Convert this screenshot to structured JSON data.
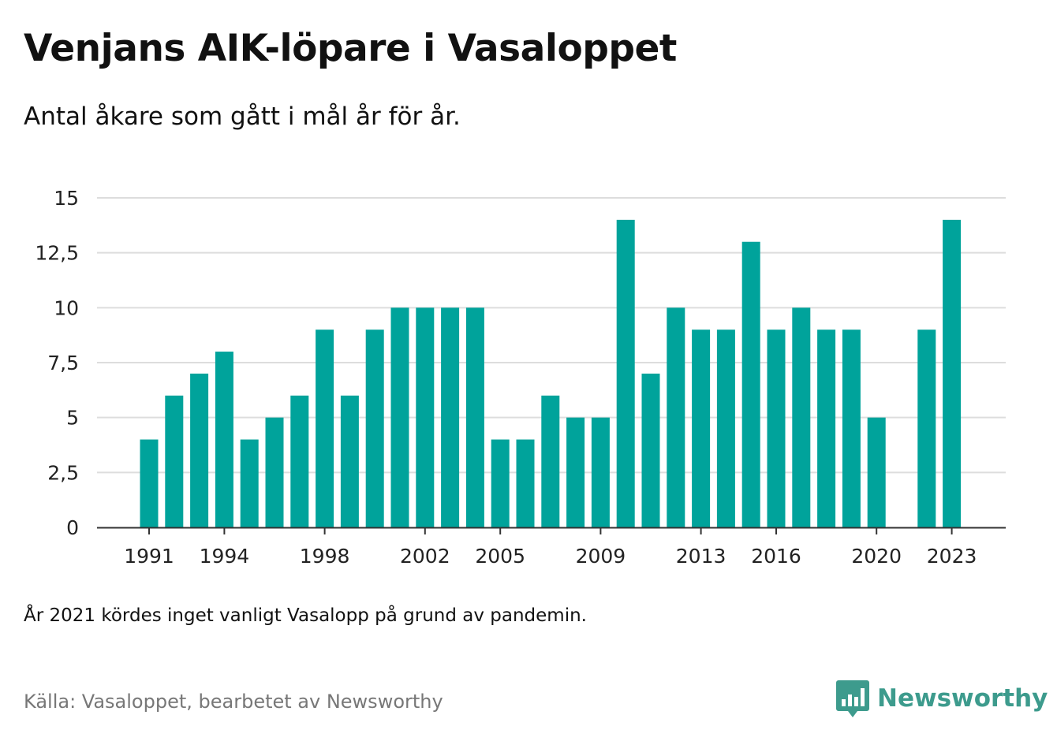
{
  "title": "Venjans AIK-löpare i Vasaloppet",
  "subtitle": "Antal åkare som gått i mål år för år.",
  "note": "År 2021 kördes inget vanligt Vasalopp på grund av pandemin.",
  "source": "Källa: Vasaloppet, bearbetet av Newsworthy",
  "logo": {
    "text": "Newsworthy",
    "icon": "bar-chart-speech-bubble-icon",
    "color": "#3d9b8d"
  },
  "chart_data": {
    "type": "bar",
    "categories": [
      1991,
      1992,
      1993,
      1994,
      1995,
      1996,
      1997,
      1998,
      1999,
      2000,
      2001,
      2002,
      2003,
      2004,
      2005,
      2006,
      2007,
      2008,
      2009,
      2010,
      2011,
      2012,
      2013,
      2014,
      2015,
      2016,
      2017,
      2018,
      2019,
      2020,
      2021,
      2022,
      2023
    ],
    "values": [
      4,
      6,
      7,
      8,
      4,
      5,
      6,
      9,
      6,
      9,
      10,
      10,
      10,
      10,
      4,
      4,
      6,
      5,
      5,
      14,
      7,
      10,
      9,
      9,
      13,
      9,
      10,
      9,
      9,
      5,
      null,
      9,
      14
    ],
    "x_tick_labels": [
      "1991",
      "1994",
      "1998",
      "2002",
      "2005",
      "2009",
      "2013",
      "2016",
      "2020",
      "2023"
    ],
    "y_tick_labels": [
      "0",
      "2,5",
      "5",
      "7,5",
      "10",
      "12,5",
      "15"
    ],
    "y_ticks": [
      0,
      2.5,
      5,
      7.5,
      10,
      12.5,
      15
    ],
    "ylim": [
      0,
      15
    ],
    "xlabel": "",
    "ylabel": "",
    "grid": true,
    "bar_color": "#00a39b",
    "grid_color": "#dddddd",
    "axis_color": "#333333"
  }
}
